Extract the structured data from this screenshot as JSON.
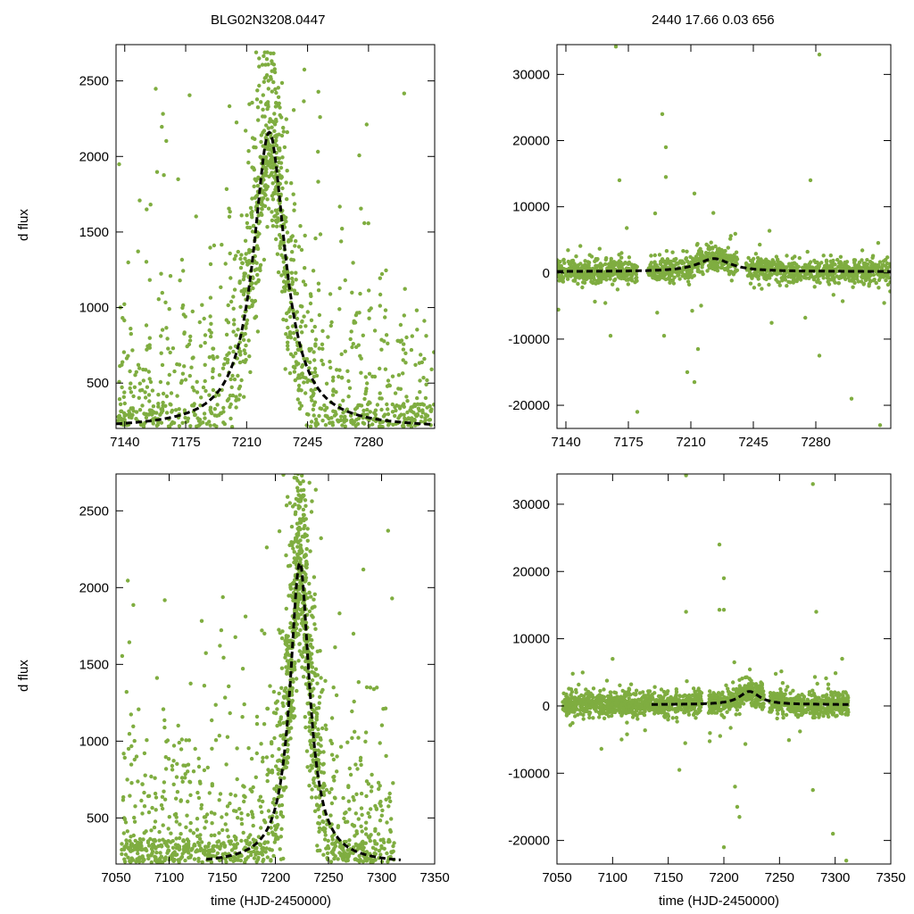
{
  "figure": {
    "title_left": "BLG02N3208.0447",
    "title_right": "2440  17.66  0.03  656",
    "ylabel": "d flux",
    "xlabel": "time (HJD-2450000)",
    "point_color": "#7fad40",
    "model_color": "#000000"
  },
  "chart_data": [
    {
      "name": "panel-top-left",
      "type": "scatter",
      "xlim": [
        7135,
        7318
      ],
      "ylim": [
        200,
        2740
      ],
      "xticks": [
        7140,
        7175,
        7210,
        7245,
        7280
      ],
      "yticks": [
        500,
        1000,
        1500,
        2000,
        2500
      ],
      "xlabel": "",
      "ylabel": "d flux",
      "model": {
        "type": "dashed-line",
        "t0": 7223,
        "peak": 2160,
        "base": 200,
        "width": 14,
        "x_range": [
          7135,
          7318
        ]
      },
      "points": {
        "seed": 11,
        "n": 1350,
        "y_spread": [
          200,
          2740
        ],
        "x_range": [
          7135,
          7318
        ]
      }
    },
    {
      "name": "panel-top-right",
      "type": "scatter",
      "xlim": [
        7135,
        7322
      ],
      "ylim": [
        -23500,
        34500
      ],
      "xticks": [
        7140,
        7175,
        7210,
        7245,
        7280
      ],
      "yticks": [
        -20000,
        -10000,
        0,
        10000,
        20000,
        30000
      ],
      "xlabel": "",
      "ylabel": "",
      "model": {
        "type": "dashed-line",
        "t0": 7223,
        "peak": 2160,
        "base": 200,
        "width": 14,
        "x_range": [
          7135,
          7322
        ]
      },
      "points": {
        "seed": 23,
        "n": 1500,
        "noise": 900,
        "x_range": [
          7135,
          7322
        ]
      },
      "outliers": [
        {
          "x": 7168,
          "y": 34200
        },
        {
          "x": 7282,
          "y": 33000
        },
        {
          "x": 7194,
          "y": 24000
        },
        {
          "x": 7196,
          "y": 19000
        },
        {
          "x": 7170,
          "y": 14000
        },
        {
          "x": 7277,
          "y": 14000
        },
        {
          "x": 7196,
          "y": 14500
        },
        {
          "x": 7190,
          "y": 9000
        },
        {
          "x": 7212,
          "y": 12000
        },
        {
          "x": 7165,
          "y": -9500
        },
        {
          "x": 7195,
          "y": -9500
        },
        {
          "x": 7214,
          "y": -11500
        },
        {
          "x": 7208,
          "y": -15000
        },
        {
          "x": 7212,
          "y": -16500
        },
        {
          "x": 7180,
          "y": -21000
        },
        {
          "x": 7282,
          "y": -12500
        },
        {
          "x": 7300,
          "y": -19000
        },
        {
          "x": 7316,
          "y": -23000
        }
      ]
    },
    {
      "name": "panel-bottom-left",
      "type": "scatter",
      "xlim": [
        7050,
        7350
      ],
      "ylim": [
        200,
        2740
      ],
      "xticks": [
        7050,
        7100,
        7150,
        7200,
        7250,
        7300,
        7350
      ],
      "yticks": [
        500,
        1000,
        1500,
        2000,
        2500
      ],
      "xlabel": "time (HJD-2450000)",
      "ylabel": "d flux",
      "model": {
        "type": "dashed-line",
        "t0": 7223,
        "peak": 2160,
        "base": 200,
        "width": 14,
        "x_range": [
          7135,
          7318
        ]
      },
      "points": {
        "seed": 37,
        "n": 1650,
        "y_spread": [
          200,
          2740
        ],
        "x_range": [
          7055,
          7312
        ]
      }
    },
    {
      "name": "panel-bottom-right",
      "type": "scatter",
      "xlim": [
        7050,
        7350
      ],
      "ylim": [
        -23500,
        34500
      ],
      "xticks": [
        7050,
        7100,
        7150,
        7200,
        7250,
        7300,
        7350
      ],
      "yticks": [
        -20000,
        -10000,
        0,
        10000,
        20000,
        30000
      ],
      "xlabel": "time (HJD-2450000)",
      "ylabel": "",
      "model": {
        "type": "dashed-line",
        "t0": 7223,
        "peak": 2160,
        "base": 200,
        "width": 14,
        "x_range": [
          7135,
          7312
        ]
      },
      "points": {
        "seed": 53,
        "n": 1700,
        "noise": 900,
        "x_range": [
          7055,
          7312
        ]
      },
      "outliers": [
        {
          "x": 7166,
          "y": 34300
        },
        {
          "x": 7280,
          "y": 33000
        },
        {
          "x": 7196,
          "y": 24000
        },
        {
          "x": 7200,
          "y": 19000
        },
        {
          "x": 7196,
          "y": 14300
        },
        {
          "x": 7200,
          "y": 14300
        },
        {
          "x": 7166,
          "y": 14000
        },
        {
          "x": 7283,
          "y": 14000
        },
        {
          "x": 7100,
          "y": 7000
        },
        {
          "x": 7160,
          "y": -9500
        },
        {
          "x": 7212,
          "y": -15000
        },
        {
          "x": 7214,
          "y": -16500
        },
        {
          "x": 7210,
          "y": -12000
        },
        {
          "x": 7200,
          "y": -21000
        },
        {
          "x": 7280,
          "y": -12500
        },
        {
          "x": 7298,
          "y": -19000
        },
        {
          "x": 7310,
          "y": -23000
        }
      ]
    }
  ]
}
